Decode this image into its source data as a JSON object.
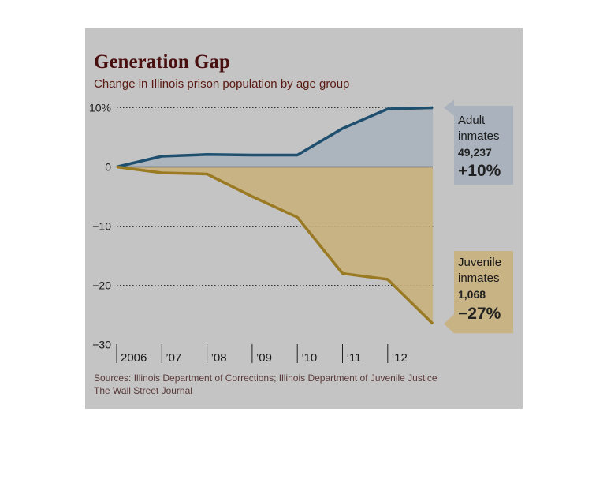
{
  "title": "Generation Gap",
  "subtitle": "Change in Illinois prison population by age group",
  "sources": "Sources: Illinois Department of Corrections; Illinois Department of Juvenile Justice",
  "credit": "The Wall Street Journal",
  "y_tick_labels": [
    "10%",
    "0",
    "−10",
    "−20",
    "−30"
  ],
  "x_tick_labels": [
    "2006",
    "’07",
    "’08",
    "’09",
    "’10",
    "’11",
    "’12"
  ],
  "adult_callout": {
    "line1": "Adult",
    "line2": "inmates",
    "count": "49,237",
    "change": "+10%"
  },
  "juvenile_callout": {
    "line1": "Juvenile",
    "line2": "inmates",
    "count": "1,068",
    "change": "−27%"
  },
  "colors": {
    "adult": "#1f4f6e",
    "juvenile": "#9a7a22",
    "juvenile_fill": "#c9b07a",
    "adult_fill": "#a6b0bc"
  },
  "chart_data": {
    "type": "line",
    "title": "Generation Gap",
    "subtitle": "Change in Illinois prison population by age group",
    "xlabel": "",
    "ylabel": "",
    "ylim": [
      -30,
      10
    ],
    "x": [
      2006,
      2007,
      2008,
      2009,
      2010,
      2011,
      2012,
      2013
    ],
    "series": [
      {
        "name": "Adult inmates",
        "values": [
          0,
          1.8,
          2.1,
          2.0,
          2.0,
          6.5,
          9.8,
          10
        ]
      },
      {
        "name": "Juvenile inmates",
        "values": [
          0,
          -1.0,
          -1.2,
          -5.0,
          -8.5,
          -18,
          -19,
          -26.5
        ]
      }
    ],
    "grid": "dotted horizontal",
    "legend": "none (direct labels at right)"
  }
}
